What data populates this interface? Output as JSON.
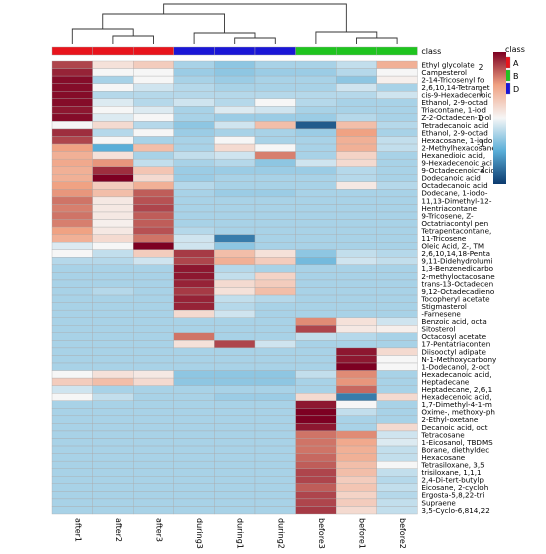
{
  "chart_data": {
    "type": "heatmap",
    "title": "",
    "samples": [
      "after1",
      "after2",
      "after3",
      "during3",
      "during1",
      "during2",
      "before3",
      "before1",
      "before2"
    ],
    "sample_class": [
      "A",
      "A",
      "A",
      "D",
      "D",
      "D",
      "B",
      "B",
      "B"
    ],
    "class_annotation_label": "class",
    "class_legend": {
      "title": "class",
      "entries": [
        {
          "name": "A",
          "color": "#e8141c"
        },
        {
          "name": "B",
          "color": "#1fc41f"
        },
        {
          "name": "D",
          "color": "#1a16d6"
        }
      ]
    },
    "color_scale": {
      "ticks": [
        "2",
        "1",
        "0",
        "-1",
        "-2"
      ],
      "tick_values": [
        2,
        1,
        0,
        -1,
        -2
      ],
      "range": [
        -2.6,
        2.6
      ],
      "low_color": "#0b3a6e",
      "mid_low_color": "#5aaed8",
      "mid_color": "#f6f6f6",
      "mid_high_color": "#f0a283",
      "high_color": "#7d0022"
    },
    "rows": [
      "Ethyl glycolate",
      "Campesterol",
      "2-14-Tricosenyl fo",
      "2,6,10,14-Tetramet",
      "cis-9-Hexadecenoic",
      "Ethanol, 2-9-octad",
      "Triacontane, 1-iod",
      "Z-2-Octadecen-1-ol",
      "Tetradecanoic acid",
      "Ethanol, 2-9-octad",
      "Hexacosane, 1-iodo",
      "2-Methylhexacosane",
      "Hexanedioic acid,",
      "9-Hexadecenoic aci",
      "9-Octadecenoic acid",
      "Dodecanoic acid",
      "Octadecanoic acid",
      "Dodecane, 1-iodo-",
      "11,13-Dimethyl-12-",
      "Hentriacontane",
      "9-Tricosene, Z-",
      "Octatriacontyl pen",
      "Tetrapentacontane,",
      "11-Tricosene",
      "Oleic Acid, Z-, TM",
      "2,6,10,14,18-Penta",
      "9,11-Didehydrolumi",
      "1,3-Benzenedicarbo",
      "2-methyloctacosane",
      "trans-13-Octadecen",
      "9,12-Octadecadieno",
      "Tocopheryl acetate",
      "Stigmasterol",
      "-Farnesene",
      "Benzoic acid, octa",
      "Sitosterol",
      "Octacosyl acetate",
      "17-Pentatriaconten",
      "Diisooctyl adipate",
      "N-1-Methoxycarbony",
      "1-Dodecanol, 2-oct",
      "Hexadecanoic acid,",
      "Heptadecane",
      "Heptadecane, 2,6,1",
      "Hexadecenoic acid,",
      "1,7-Dimethyl-4-1-m",
      "Oxime-, methoxy-ph",
      "2-Ethyl-oxetane",
      "Decanoic acid, oct",
      "Tetracosane",
      "1-Eicosanol, TBDMS",
      "Borane, diethyldec",
      "Hexacosane",
      "Tetrasiloxane, 3,5",
      "trisiloxane, 1,1,1",
      "2,4-Di-tert-butylp",
      "Eicosane, 2-cycloh",
      "Ergosta-5,8,22-tri",
      "Supraene",
      "3,5-Cyclo-6,814,22"
    ],
    "values": [
      [
        2.0,
        0.3,
        0.6,
        -0.6,
        -0.8,
        -0.6,
        -0.6,
        -0.4,
        1.0
      ],
      [
        2.3,
        0.0,
        0.0,
        -0.7,
        -0.8,
        -0.7,
        -0.7,
        -0.5,
        0.0
      ],
      [
        2.5,
        -0.6,
        0.0,
        -0.6,
        -0.7,
        -0.6,
        -0.6,
        -0.8,
        0.1
      ],
      [
        2.5,
        0.0,
        -0.3,
        -0.5,
        -0.6,
        -0.6,
        -0.6,
        -0.3,
        -0.6
      ],
      [
        2.5,
        -0.5,
        -0.5,
        -0.5,
        -0.5,
        -0.5,
        -0.5,
        -0.5,
        -0.3
      ],
      [
        2.5,
        -0.2,
        -0.5,
        -0.3,
        -0.5,
        0.0,
        -0.5,
        -0.6,
        -0.6
      ],
      [
        2.4,
        0.0,
        -0.2,
        -0.6,
        -0.2,
        -0.3,
        -0.6,
        -0.6,
        -0.6
      ],
      [
        2.5,
        -0.2,
        0.0,
        -0.6,
        -0.7,
        -0.7,
        -0.7,
        -0.5,
        -0.6
      ],
      [
        0.0,
        0.4,
        -0.5,
        -0.8,
        -0.3,
        0.8,
        -2.2,
        0.8,
        -0.5
      ],
      [
        2.2,
        -0.5,
        0.0,
        -0.7,
        -0.6,
        -0.6,
        -0.7,
        1.2,
        -0.6
      ],
      [
        2.0,
        0.0,
        -0.6,
        -0.6,
        0.0,
        -0.6,
        -0.6,
        1.0,
        -0.4
      ],
      [
        1.2,
        -1.2,
        0.8,
        -0.6,
        0.4,
        0.0,
        -0.6,
        1.0,
        -0.4
      ],
      [
        1.0,
        0.3,
        -0.6,
        -0.4,
        -0.3,
        1.5,
        -0.6,
        0.5,
        -0.6
      ],
      [
        1.1,
        1.3,
        -0.4,
        -0.6,
        -0.5,
        -0.8,
        -0.3,
        0.4,
        -0.6
      ],
      [
        1.0,
        2.2,
        0.7,
        -0.7,
        -0.7,
        -0.7,
        -0.7,
        -0.5,
        -0.6
      ],
      [
        1.0,
        2.6,
        0.4,
        -0.7,
        -0.6,
        -0.6,
        -0.6,
        -0.5,
        -0.6
      ],
      [
        1.2,
        0.6,
        1.0,
        -0.5,
        -0.6,
        -0.6,
        -0.6,
        0.2,
        -0.5
      ],
      [
        1.3,
        0.8,
        1.8,
        -0.6,
        -0.7,
        -0.7,
        -0.6,
        -0.6,
        -0.6
      ],
      [
        1.6,
        0.2,
        1.9,
        -0.6,
        -0.6,
        -0.6,
        -0.6,
        -0.6,
        -0.6
      ],
      [
        1.5,
        0.2,
        2.0,
        -0.6,
        -0.6,
        -0.6,
        -0.6,
        -0.6,
        -0.6
      ],
      [
        1.6,
        0.2,
        1.8,
        -0.6,
        -0.6,
        -0.6,
        -0.6,
        -0.6,
        -0.6
      ],
      [
        1.5,
        0.1,
        1.8,
        -0.6,
        -0.6,
        -0.6,
        -0.6,
        -0.6,
        -0.6
      ],
      [
        1.2,
        0.2,
        1.9,
        -0.5,
        -0.6,
        -0.6,
        -0.6,
        -0.6,
        -0.6
      ],
      [
        1.0,
        0.4,
        1.6,
        -0.3,
        -1.8,
        -0.6,
        -0.6,
        -0.6,
        -0.6
      ],
      [
        -0.2,
        0.0,
        2.6,
        -0.3,
        -0.8,
        -0.6,
        -0.6,
        -0.6,
        -0.6
      ],
      [
        0.0,
        -0.4,
        0.6,
        2.1,
        0.8,
        0.3,
        -0.8,
        -0.4,
        -0.5
      ],
      [
        -0.5,
        -0.5,
        -0.3,
        2.0,
        1.0,
        0.6,
        -1.0,
        -0.3,
        -0.4
      ],
      [
        -0.6,
        -0.6,
        -0.6,
        2.4,
        -0.5,
        -0.6,
        -0.6,
        -0.6,
        -0.6
      ],
      [
        -0.6,
        -0.6,
        -0.6,
        2.4,
        -0.4,
        0.5,
        -0.6,
        -0.6,
        -0.6
      ],
      [
        -0.6,
        -0.6,
        -0.6,
        2.3,
        0.4,
        0.6,
        -0.6,
        -0.6,
        -0.6
      ],
      [
        -0.6,
        -0.5,
        -0.6,
        2.1,
        0.3,
        0.8,
        -0.6,
        -0.6,
        -0.6
      ],
      [
        -0.6,
        -0.6,
        -0.6,
        2.3,
        -0.4,
        -0.5,
        -0.6,
        -0.6,
        -0.6
      ],
      [
        -0.6,
        -0.6,
        -0.6,
        2.3,
        -0.5,
        -0.6,
        -0.6,
        -0.6,
        -0.6
      ],
      [
        -0.6,
        -0.6,
        -0.6,
        0.4,
        -0.3,
        -0.6,
        -0.6,
        -0.6,
        -0.6
      ],
      [
        -0.6,
        -0.6,
        -0.6,
        -0.6,
        -0.6,
        -0.6,
        1.4,
        0.3,
        -0.3
      ],
      [
        -0.6,
        -0.6,
        -0.6,
        -0.6,
        -0.6,
        -0.6,
        2.0,
        0.2,
        0.1
      ],
      [
        -0.6,
        -0.6,
        -0.6,
        1.6,
        -0.6,
        -0.6,
        -0.4,
        -0.5,
        -0.6
      ],
      [
        -0.6,
        -0.6,
        -0.6,
        0.3,
        2.0,
        -0.3,
        -0.6,
        -0.6,
        -0.6
      ],
      [
        -0.6,
        -0.6,
        -0.6,
        -0.6,
        -0.6,
        -0.6,
        -0.6,
        2.4,
        0.4
      ],
      [
        -0.6,
        -0.6,
        -0.6,
        -0.6,
        -0.6,
        -0.6,
        -0.6,
        2.4,
        0.0
      ],
      [
        -0.6,
        -0.6,
        -0.6,
        -0.6,
        -0.6,
        -0.6,
        -0.6,
        2.6,
        0.0
      ],
      [
        0.0,
        0.3,
        0.2,
        -0.8,
        -0.8,
        -0.8,
        -0.4,
        1.4,
        -0.6
      ],
      [
        0.6,
        0.8,
        0.4,
        -0.8,
        -0.8,
        -0.8,
        -0.6,
        1.3,
        -0.6
      ],
      [
        -0.3,
        -0.6,
        -0.6,
        -0.6,
        -0.6,
        -0.6,
        -0.6,
        1.7,
        -0.6
      ],
      [
        0.0,
        -0.4,
        -0.6,
        -0.6,
        -0.7,
        -0.7,
        0.4,
        -1.8,
        0.4
      ],
      [
        -0.6,
        -0.6,
        -0.6,
        -0.6,
        -0.6,
        -0.6,
        2.4,
        0.0,
        -0.6
      ],
      [
        -0.6,
        -0.6,
        -0.6,
        -0.6,
        -0.6,
        -0.6,
        2.6,
        -0.4,
        -0.6
      ],
      [
        -0.6,
        -0.6,
        -0.6,
        -0.6,
        -0.6,
        -0.6,
        2.6,
        -0.6,
        -0.6
      ],
      [
        -0.6,
        -0.6,
        -0.6,
        -0.6,
        -0.6,
        -0.6,
        2.4,
        -0.6,
        0.4
      ],
      [
        -0.6,
        -0.6,
        -0.6,
        -0.6,
        -0.6,
        -0.6,
        1.6,
        1.4,
        -0.3
      ],
      [
        -0.6,
        -0.6,
        -0.6,
        -0.6,
        -0.6,
        -0.6,
        1.6,
        1.1,
        -0.2
      ],
      [
        -0.6,
        -0.6,
        -0.6,
        -0.6,
        -0.6,
        -0.6,
        1.6,
        1.0,
        -0.4
      ],
      [
        -0.6,
        -0.6,
        -0.6,
        -0.6,
        -0.6,
        -0.6,
        1.7,
        1.0,
        -0.4
      ],
      [
        -0.6,
        -0.6,
        -0.6,
        -0.6,
        -0.6,
        -0.6,
        1.8,
        0.8,
        0.0
      ],
      [
        -0.6,
        -0.6,
        -0.6,
        -0.6,
        -0.6,
        -0.6,
        2.0,
        0.8,
        -0.4
      ],
      [
        -0.6,
        -0.6,
        -0.6,
        -0.6,
        -0.6,
        -0.6,
        2.0,
        0.6,
        -0.5
      ],
      [
        -0.6,
        -0.6,
        -0.6,
        -0.6,
        -0.6,
        -0.6,
        1.8,
        0.7,
        -0.4
      ],
      [
        -0.6,
        -0.6,
        -0.6,
        -0.6,
        -0.6,
        -0.6,
        2.0,
        0.5,
        -0.5
      ],
      [
        -0.6,
        -0.6,
        -0.6,
        -0.6,
        -0.6,
        -0.6,
        2.0,
        0.6,
        -0.4
      ],
      [
        -0.6,
        -0.6,
        -0.6,
        -0.6,
        -0.6,
        -0.6,
        2.1,
        0.4,
        -0.4
      ]
    ],
    "grid": true,
    "legend_position": "top-right"
  }
}
